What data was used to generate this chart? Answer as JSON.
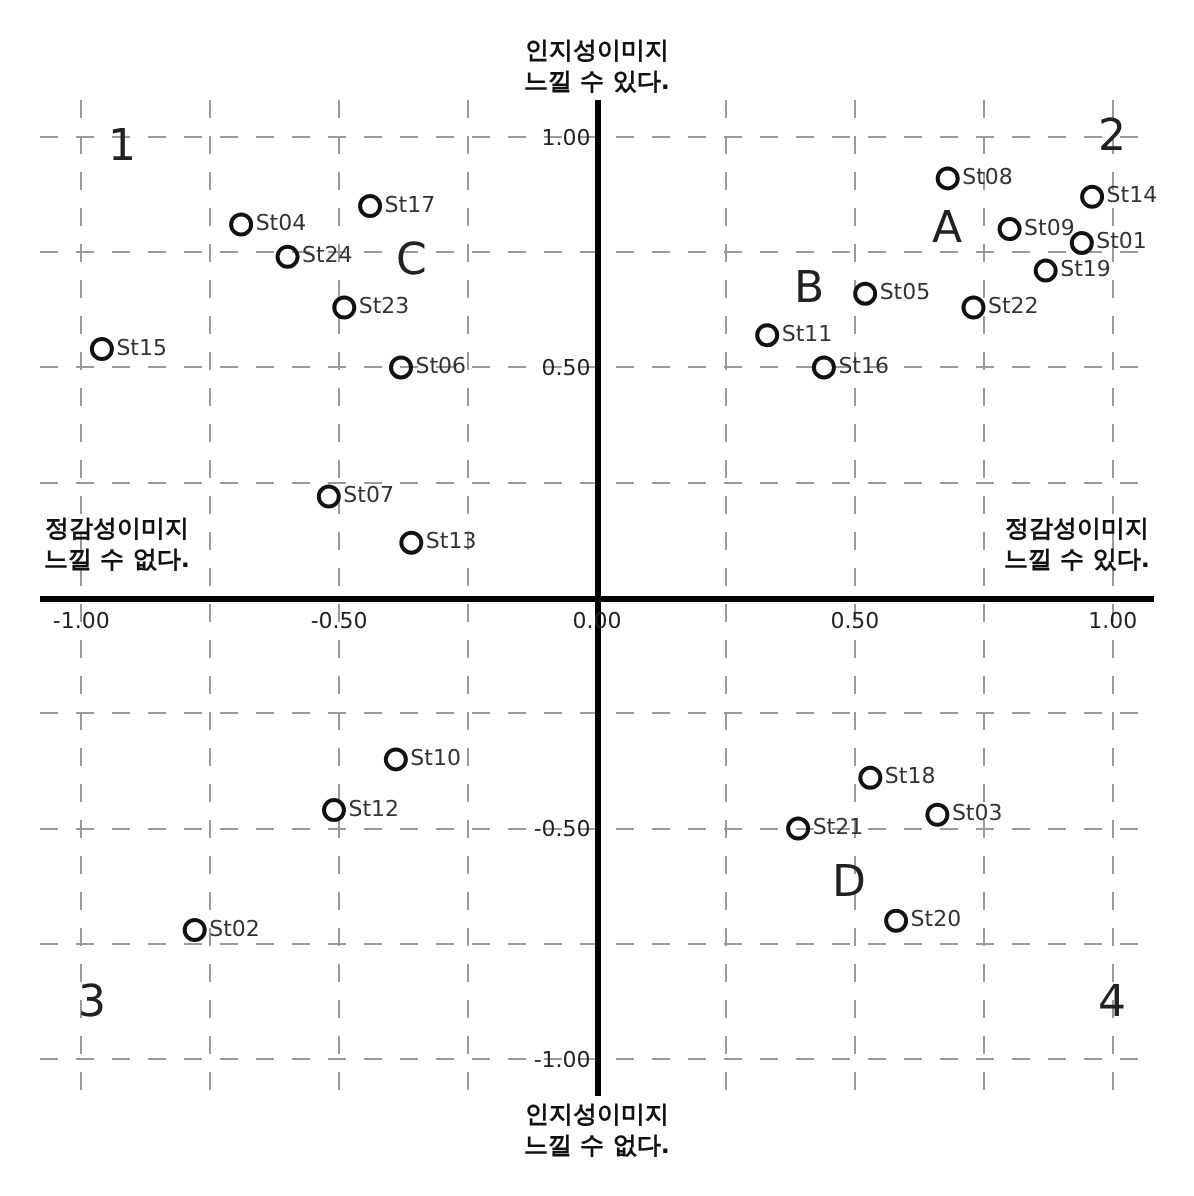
{
  "chart_data": {
    "type": "scatter",
    "xlabel": "정감성이미지\n느낄 수 있다.",
    "ylabel": "인지성이미지\n느낄 수 있다.",
    "annotations": [
      "정감성이미지\n느낄 수 없다.",
      "인지성이미지\n느낄 수 없다.",
      "A",
      "B",
      "C",
      "D",
      "1",
      "2",
      "3",
      "4"
    ],
    "x": [
      0.94,
      -0.78,
      0.66,
      -0.69,
      0.52,
      -0.38,
      -0.52,
      0.68,
      0.8,
      -0.39,
      0.33,
      -0.51,
      -0.36,
      0.96,
      -0.96,
      0.44,
      -0.44,
      0.53,
      0.87,
      0.58,
      0.39,
      0.73,
      -0.49,
      -0.6
    ],
    "series": [
      {
        "color": "#111111",
        "values": [
          0.77,
          -0.72,
          -0.47,
          0.81,
          0.66,
          0.5,
          0.22,
          0.91,
          0.8,
          -0.35,
          0.57,
          -0.46,
          0.12,
          0.87,
          0.54,
          0.5,
          0.85,
          -0.39,
          0.71,
          -0.7,
          -0.5,
          0.63,
          0.63,
          0.74
        ],
        "value_labels": [
          "St01",
          "St02",
          "St03",
          "St04",
          "St05",
          "St06",
          "St07",
          "St08",
          "St09",
          "St10",
          "St11",
          "St12",
          "St13",
          "St14",
          "St15",
          "St16",
          "St17",
          "St18",
          "St19",
          "St20",
          "St21",
          "St22",
          "St23",
          "St24"
        ]
      }
    ],
    "marker": "circle",
    "xlim": [
      -1.08,
      1.08
    ],
    "ylim": [
      -1.08,
      1.08
    ],
    "xticks": [
      {
        "value": -1.0,
        "label": "-1.00"
      },
      {
        "value": -0.75,
        "label": null
      },
      {
        "value": -0.5,
        "label": "-0.50"
      },
      {
        "value": -0.25,
        "label": null
      },
      {
        "value": 0.0,
        "label": "0.00"
      },
      {
        "value": 0.25,
        "label": null
      },
      {
        "value": 0.5,
        "label": "0.50"
      },
      {
        "value": 0.75,
        "label": null
      },
      {
        "value": 1.0,
        "label": "1.00"
      }
    ],
    "yticks": [
      {
        "value": -1.0,
        "label": "-1.00"
      },
      {
        "value": -0.75,
        "label": null
      },
      {
        "value": -0.5,
        "label": "-0.50"
      },
      {
        "value": -0.25,
        "label": null
      },
      {
        "value": 0.0,
        "label": null
      },
      {
        "value": 0.25,
        "label": null
      },
      {
        "value": 0.5,
        "label": "0.50"
      },
      {
        "value": 0.75,
        "label": null
      },
      {
        "value": 1.0,
        "label": "1.00"
      }
    ],
    "grid": true
  }
}
